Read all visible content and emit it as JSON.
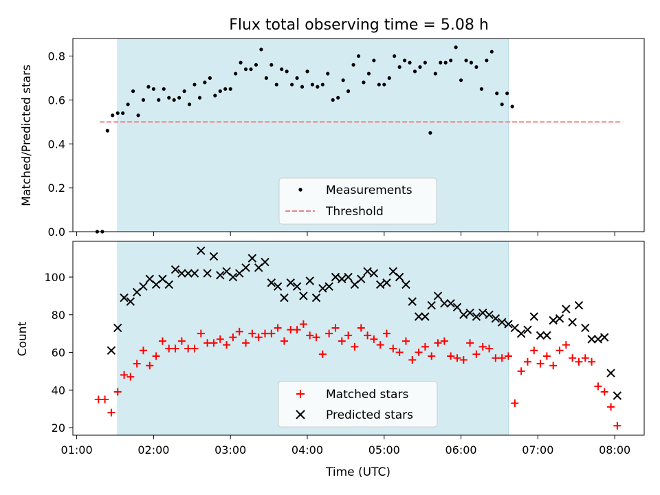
{
  "figure": {
    "title": "Flux total observing time = 5.08 h",
    "xlabel": "Time (UTC)"
  },
  "chart_data": [
    {
      "type": "scatter",
      "panel": "top",
      "ylabel": "Matched/Predicted stars",
      "xlim": [
        "00:57",
        "08:23"
      ],
      "ylim": [
        0,
        0.88
      ],
      "yticks": [
        "0.0",
        "0.2",
        "0.4",
        "0.6",
        "0.8"
      ],
      "shaded_interval": [
        "01:32",
        "06:37"
      ],
      "shaded_color": "#d4ebf1",
      "grid": false,
      "legend_position": "lower center",
      "series": [
        {
          "name": "Measurements",
          "marker": "dot",
          "color": "#000000",
          "points": [
            [
              "01:16",
              0.0
            ],
            [
              "01:20",
              0.0
            ],
            [
              "01:24",
              0.46
            ],
            [
              "01:28",
              0.53
            ],
            [
              "01:32",
              0.54
            ],
            [
              "01:36",
              0.54
            ],
            [
              "01:40",
              0.58
            ],
            [
              "01:44",
              0.64
            ],
            [
              "01:48",
              0.53
            ],
            [
              "01:52",
              0.6
            ],
            [
              "01:56",
              0.66
            ],
            [
              "02:00",
              0.65
            ],
            [
              "02:04",
              0.6
            ],
            [
              "02:08",
              0.65
            ],
            [
              "02:12",
              0.61
            ],
            [
              "02:16",
              0.6
            ],
            [
              "02:20",
              0.61
            ],
            [
              "02:24",
              0.64
            ],
            [
              "02:28",
              0.58
            ],
            [
              "02:32",
              0.67
            ],
            [
              "02:36",
              0.61
            ],
            [
              "02:40",
              0.68
            ],
            [
              "02:44",
              0.7
            ],
            [
              "02:48",
              0.62
            ],
            [
              "02:52",
              0.64
            ],
            [
              "02:56",
              0.65
            ],
            [
              "03:00",
              0.65
            ],
            [
              "03:04",
              0.72
            ],
            [
              "03:08",
              0.77
            ],
            [
              "03:12",
              0.74
            ],
            [
              "03:16",
              0.74
            ],
            [
              "03:20",
              0.76
            ],
            [
              "03:24",
              0.83
            ],
            [
              "03:28",
              0.7
            ],
            [
              "03:32",
              0.76
            ],
            [
              "03:36",
              0.67
            ],
            [
              "03:40",
              0.74
            ],
            [
              "03:44",
              0.73
            ],
            [
              "03:48",
              0.67
            ],
            [
              "03:52",
              0.7
            ],
            [
              "03:56",
              0.66
            ],
            [
              "04:00",
              0.73
            ],
            [
              "04:04",
              0.67
            ],
            [
              "04:08",
              0.66
            ],
            [
              "04:12",
              0.67
            ],
            [
              "04:16",
              0.72
            ],
            [
              "04:20",
              0.6
            ],
            [
              "04:24",
              0.61
            ],
            [
              "04:28",
              0.69
            ],
            [
              "04:32",
              0.64
            ],
            [
              "04:36",
              0.76
            ],
            [
              "04:40",
              0.8
            ],
            [
              "04:44",
              0.68
            ],
            [
              "04:48",
              0.72
            ],
            [
              "04:52",
              0.78
            ],
            [
              "04:56",
              0.67
            ],
            [
              "05:00",
              0.67
            ],
            [
              "05:04",
              0.7
            ],
            [
              "05:08",
              0.8
            ],
            [
              "05:12",
              0.75
            ],
            [
              "05:16",
              0.78
            ],
            [
              "05:20",
              0.77
            ],
            [
              "05:24",
              0.73
            ],
            [
              "05:28",
              0.75
            ],
            [
              "05:32",
              0.77
            ],
            [
              "05:36",
              0.45
            ],
            [
              "05:40",
              0.72
            ],
            [
              "05:44",
              0.77
            ],
            [
              "05:48",
              0.77
            ],
            [
              "05:52",
              0.78
            ],
            [
              "05:56",
              0.84
            ],
            [
              "06:00",
              0.69
            ],
            [
              "06:04",
              0.78
            ],
            [
              "06:08",
              0.77
            ],
            [
              "06:12",
              0.75
            ],
            [
              "06:16",
              0.65
            ],
            [
              "06:20",
              0.78
            ],
            [
              "06:24",
              0.82
            ],
            [
              "06:28",
              0.63
            ],
            [
              "06:32",
              0.58
            ],
            [
              "06:36",
              0.63
            ],
            [
              "06:40",
              0.57
            ]
          ]
        },
        {
          "name": "Threshold",
          "style": "dashed line",
          "color": "#f08080",
          "points": [
            [
              "01:18",
              0.5
            ],
            [
              "08:06",
              0.5
            ]
          ]
        }
      ]
    },
    {
      "type": "scatter",
      "panel": "bottom",
      "ylabel": "Count",
      "xlabel": "Time (UTC)",
      "xlim": [
        "00:57",
        "08:23"
      ],
      "ylim": [
        16,
        119
      ],
      "yticks": [
        "20",
        "40",
        "60",
        "80",
        "100"
      ],
      "xticks": [
        "01:00",
        "02:00",
        "03:00",
        "04:00",
        "05:00",
        "06:00",
        "07:00",
        "08:00"
      ],
      "shaded_interval": [
        "01:32",
        "06:37"
      ],
      "shaded_color": "#d4ebf1",
      "grid": false,
      "legend_position": "lower center",
      "series": [
        {
          "name": "Matched stars",
          "marker": "plus",
          "color": "#ff0000",
          "points": [
            [
              "01:17",
              35
            ],
            [
              "01:22",
              35
            ],
            [
              "01:27",
              28
            ],
            [
              "01:32",
              39
            ],
            [
              "01:37",
              48
            ],
            [
              "01:42",
              47
            ],
            [
              "01:47",
              54
            ],
            [
              "01:52",
              61
            ],
            [
              "01:57",
              53
            ],
            [
              "02:02",
              58
            ],
            [
              "02:07",
              66
            ],
            [
              "02:12",
              62
            ],
            [
              "02:17",
              62
            ],
            [
              "02:22",
              66
            ],
            [
              "02:27",
              62
            ],
            [
              "02:32",
              62
            ],
            [
              "02:37",
              70
            ],
            [
              "02:42",
              65
            ],
            [
              "02:47",
              65
            ],
            [
              "02:52",
              67
            ],
            [
              "02:57",
              64
            ],
            [
              "03:02",
              68
            ],
            [
              "03:07",
              71
            ],
            [
              "03:12",
              65
            ],
            [
              "03:17",
              70
            ],
            [
              "03:22",
              68
            ],
            [
              "03:27",
              70
            ],
            [
              "03:32",
              70
            ],
            [
              "03:37",
              73
            ],
            [
              "03:42",
              66
            ],
            [
              "03:47",
              72
            ],
            [
              "03:52",
              72
            ],
            [
              "03:57",
              75
            ],
            [
              "04:02",
              69
            ],
            [
              "04:07",
              68
            ],
            [
              "04:12",
              59
            ],
            [
              "04:17",
              70
            ],
            [
              "04:22",
              73
            ],
            [
              "04:27",
              66
            ],
            [
              "04:32",
              69
            ],
            [
              "04:37",
              63
            ],
            [
              "04:42",
              73
            ],
            [
              "04:47",
              69
            ],
            [
              "04:52",
              67
            ],
            [
              "04:57",
              64
            ],
            [
              "05:02",
              70
            ],
            [
              "05:07",
              62
            ],
            [
              "05:12",
              60
            ],
            [
              "05:17",
              66
            ],
            [
              "05:22",
              56
            ],
            [
              "05:27",
              60
            ],
            [
              "05:32",
              63
            ],
            [
              "05:37",
              58
            ],
            [
              "05:42",
              65
            ],
            [
              "05:47",
              66
            ],
            [
              "05:52",
              58
            ],
            [
              "05:57",
              57
            ],
            [
              "06:02",
              56
            ],
            [
              "06:07",
              65
            ],
            [
              "06:12",
              59
            ],
            [
              "06:17",
              63
            ],
            [
              "06:22",
              62
            ],
            [
              "06:27",
              57
            ],
            [
              "06:32",
              57
            ],
            [
              "06:37",
              58
            ],
            [
              "06:42",
              33
            ],
            [
              "06:47",
              50
            ],
            [
              "06:52",
              55
            ],
            [
              "06:57",
              61
            ],
            [
              "07:02",
              54
            ],
            [
              "07:07",
              58
            ],
            [
              "07:12",
              53
            ],
            [
              "07:17",
              61
            ],
            [
              "07:22",
              64
            ],
            [
              "07:27",
              57
            ],
            [
              "07:32",
              55
            ],
            [
              "07:37",
              57
            ],
            [
              "07:42",
              55
            ],
            [
              "07:47",
              42
            ],
            [
              "07:52",
              39
            ],
            [
              "07:57",
              31
            ],
            [
              "08:02",
              21
            ]
          ]
        },
        {
          "name": "Predicted stars",
          "marker": "x",
          "color": "#000000",
          "points": [
            [
              "01:27",
              61
            ],
            [
              "01:32",
              73
            ],
            [
              "01:37",
              89
            ],
            [
              "01:42",
              87
            ],
            [
              "01:47",
              92
            ],
            [
              "01:52",
              95
            ],
            [
              "01:57",
              99
            ],
            [
              "02:02",
              96
            ],
            [
              "02:07",
              99
            ],
            [
              "02:12",
              96
            ],
            [
              "02:17",
              104
            ],
            [
              "02:22",
              102
            ],
            [
              "02:27",
              102
            ],
            [
              "02:32",
              102
            ],
            [
              "02:37",
              114
            ],
            [
              "02:42",
              102
            ],
            [
              "02:47",
              111
            ],
            [
              "02:52",
              101
            ],
            [
              "02:57",
              103
            ],
            [
              "03:02",
              100
            ],
            [
              "03:07",
              102
            ],
            [
              "03:12",
              105
            ],
            [
              "03:17",
              110
            ],
            [
              "03:22",
              105
            ],
            [
              "03:27",
              108
            ],
            [
              "03:32",
              97
            ],
            [
              "03:37",
              95
            ],
            [
              "03:42",
              89
            ],
            [
              "03:47",
              97
            ],
            [
              "03:52",
              95
            ],
            [
              "03:57",
              90
            ],
            [
              "04:02",
              98
            ],
            [
              "04:07",
              89
            ],
            [
              "04:12",
              94
            ],
            [
              "04:17",
              95
            ],
            [
              "04:22",
              100
            ],
            [
              "04:27",
              99
            ],
            [
              "04:32",
              100
            ],
            [
              "04:37",
              96
            ],
            [
              "04:42",
              99
            ],
            [
              "04:47",
              103
            ],
            [
              "04:52",
              102
            ],
            [
              "04:57",
              96
            ],
            [
              "05:02",
              97
            ],
            [
              "05:07",
              103
            ],
            [
              "05:12",
              100
            ],
            [
              "05:17",
              96
            ],
            [
              "05:22",
              87
            ],
            [
              "05:27",
              79
            ],
            [
              "05:32",
              79
            ],
            [
              "05:37",
              85
            ],
            [
              "05:42",
              90
            ],
            [
              "05:47",
              86
            ],
            [
              "05:52",
              86
            ],
            [
              "05:57",
              84
            ],
            [
              "06:02",
              80
            ],
            [
              "06:07",
              81
            ],
            [
              "06:12",
              79
            ],
            [
              "06:17",
              81
            ],
            [
              "06:22",
              80
            ],
            [
              "06:27",
              78
            ],
            [
              "06:32",
              76
            ],
            [
              "06:37",
              75
            ],
            [
              "06:42",
              73
            ],
            [
              "06:47",
              70
            ],
            [
              "06:52",
              72
            ],
            [
              "06:57",
              79
            ],
            [
              "07:02",
              69
            ],
            [
              "07:07",
              69
            ],
            [
              "07:12",
              77
            ],
            [
              "07:17",
              78
            ],
            [
              "07:22",
              83
            ],
            [
              "07:27",
              76
            ],
            [
              "07:32",
              85
            ],
            [
              "07:37",
              73
            ],
            [
              "07:42",
              67
            ],
            [
              "07:47",
              67
            ],
            [
              "07:52",
              68
            ],
            [
              "07:57",
              49
            ],
            [
              "08:02",
              37
            ]
          ]
        }
      ]
    }
  ]
}
